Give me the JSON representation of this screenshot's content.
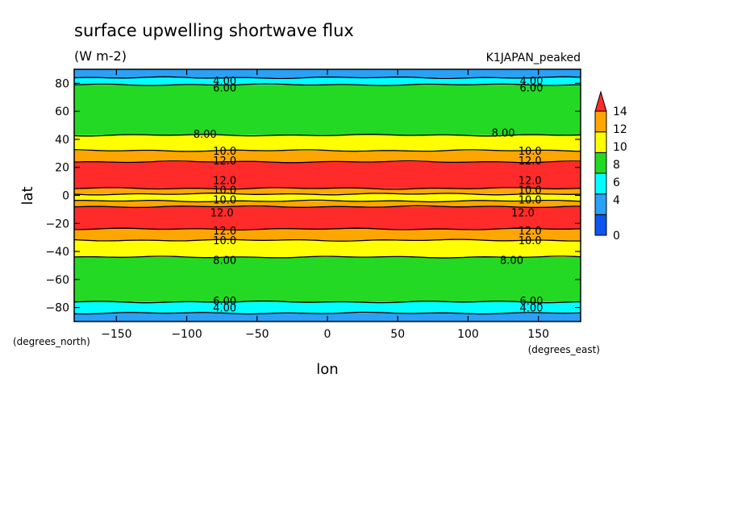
{
  "chart_data": {
    "type": "heatmap",
    "title": "surface upwelling shortwave flux",
    "units": "(W m-2)",
    "dataset": "K1JAPAN_peaked",
    "xlabel": "lon",
    "ylabel": "lat",
    "x_units": "(degrees_east)",
    "y_units": "(degrees_north)",
    "xlim": [
      -180,
      180
    ],
    "ylim": [
      -90,
      90
    ],
    "x_ticks": [
      -150,
      -100,
      -50,
      0,
      50,
      100,
      150
    ],
    "y_ticks": [
      -80,
      -60,
      -40,
      -20,
      0,
      20,
      40,
      60,
      80
    ],
    "x_tick_labels": [
      "−150",
      "−100",
      "−50",
      "0",
      "50",
      "100",
      "150"
    ],
    "y_tick_labels": [
      "−80",
      "−60",
      "−40",
      "−20",
      "0",
      "20",
      "40",
      "60",
      "80"
    ],
    "colorbar": {
      "levels": [
        0,
        2,
        4,
        6,
        8,
        10,
        12,
        14
      ],
      "tick_labels": [
        "0",
        "4",
        "6",
        "8",
        "10",
        "12",
        "14"
      ],
      "colors": [
        "#0c55f0",
        "#2aa0f6",
        "#00ffff",
        "#24d924",
        "#ffff00",
        "#ffa500",
        "#ff2a2a"
      ]
    },
    "zonal_bands": [
      {
        "lat": [
          -90,
          -84
        ],
        "value_range": [
          2,
          4
        ]
      },
      {
        "lat": [
          -84,
          -76
        ],
        "value_range": [
          4,
          6
        ]
      },
      {
        "lat": [
          -76,
          -44
        ],
        "value_range": [
          6,
          8
        ]
      },
      {
        "lat": [
          -44,
          -32
        ],
        "value_range": [
          8,
          10
        ]
      },
      {
        "lat": [
          -32,
          -24
        ],
        "value_range": [
          10,
          12
        ]
      },
      {
        "lat": [
          -24,
          -8
        ],
        "value_range": [
          12,
          14
        ]
      },
      {
        "lat": [
          -8,
          -4
        ],
        "value_range": [
          10,
          12
        ]
      },
      {
        "lat": [
          -4,
          1
        ],
        "value_range": [
          8,
          10
        ]
      },
      {
        "lat": [
          1,
          5
        ],
        "value_range": [
          10,
          12
        ]
      },
      {
        "lat": [
          5,
          24
        ],
        "value_range": [
          12,
          14
        ]
      },
      {
        "lat": [
          24,
          32
        ],
        "value_range": [
          10,
          12
        ]
      },
      {
        "lat": [
          32,
          43
        ],
        "value_range": [
          8,
          10
        ]
      },
      {
        "lat": [
          43,
          79
        ],
        "value_range": [
          6,
          8
        ]
      },
      {
        "lat": [
          79,
          84
        ],
        "value_range": [
          4,
          6
        ]
      },
      {
        "lat": [
          84,
          90
        ],
        "value_range": [
          2,
          4
        ]
      }
    ],
    "contour_labels": [
      {
        "text": "4.00",
        "lon": -73,
        "lat": 82
      },
      {
        "text": "4.00",
        "lon": 145,
        "lat": 82
      },
      {
        "text": "6.00",
        "lon": -73,
        "lat": 77
      },
      {
        "text": "6.00",
        "lon": 145,
        "lat": 77
      },
      {
        "text": "8.00",
        "lon": -87,
        "lat": 44
      },
      {
        "text": "8.00",
        "lon": 125,
        "lat": 45
      },
      {
        "text": "10.0",
        "lon": -73,
        "lat": 32
      },
      {
        "text": "10.0",
        "lon": 144,
        "lat": 32
      },
      {
        "text": "12.0",
        "lon": -73,
        "lat": 25
      },
      {
        "text": "12.0",
        "lon": 144,
        "lat": 25
      },
      {
        "text": "12.0",
        "lon": -73,
        "lat": 11
      },
      {
        "text": "12.0",
        "lon": 144,
        "lat": 11
      },
      {
        "text": "10.0",
        "lon": -73,
        "lat": 4
      },
      {
        "text": "10.0",
        "lon": 144,
        "lat": 4
      },
      {
        "text": "10.0",
        "lon": -73,
        "lat": -3
      },
      {
        "text": "10.0",
        "lon": 144,
        "lat": -3
      },
      {
        "text": "12.0",
        "lon": -75,
        "lat": -12
      },
      {
        "text": "12.0",
        "lon": 139,
        "lat": -12
      },
      {
        "text": "12.0",
        "lon": -73,
        "lat": -25
      },
      {
        "text": "12.0",
        "lon": 144,
        "lat": -25
      },
      {
        "text": "10.0",
        "lon": -73,
        "lat": -32
      },
      {
        "text": "10.0",
        "lon": 144,
        "lat": -32
      },
      {
        "text": "8.00",
        "lon": -73,
        "lat": -46
      },
      {
        "text": "8.00",
        "lon": 131,
        "lat": -46
      },
      {
        "text": "6.00",
        "lon": -73,
        "lat": -75
      },
      {
        "text": "6.00",
        "lon": 145,
        "lat": -75
      },
      {
        "text": "4.00",
        "lon": -73,
        "lat": -80
      },
      {
        "text": "4.00",
        "lon": 145,
        "lat": -80
      }
    ]
  }
}
